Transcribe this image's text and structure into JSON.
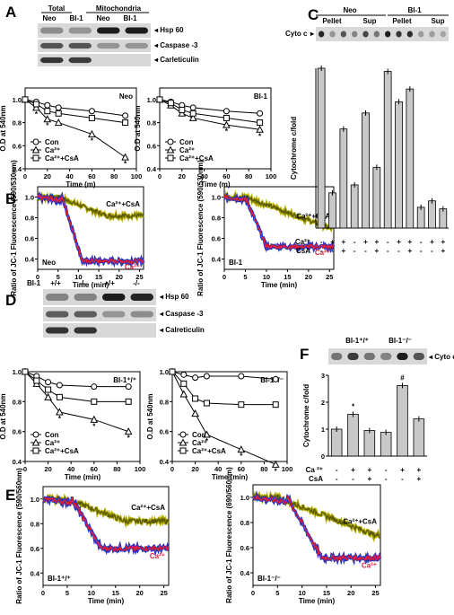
{
  "panelA": {
    "letter": "A",
    "blot": {
      "header_total": "Total",
      "header_mito": "Mitochondria",
      "lanes": [
        "Neo",
        "BI-1",
        "Neo",
        "BI-1"
      ],
      "bands": [
        "Hsp 60",
        "Caspase -3",
        "Carleticulin"
      ]
    },
    "plots": [
      {
        "title": "Neo",
        "ylabel": "O.D at 540nm",
        "xlabel": "Time (m)",
        "xticks": [
          "0",
          "20",
          "40",
          "60",
          "80",
          "100"
        ],
        "yticks": [
          "0.4",
          "0.6",
          "0.8",
          "1.0"
        ],
        "legend": [
          "Con",
          "Ca²⁺",
          "Ca²⁺+CsA"
        ]
      },
      {
        "title": "BI-1",
        "ylabel": "O.D at 540nm",
        "xlabel": "Time (m)",
        "xticks": [
          "0",
          "20",
          "40",
          "60",
          "80",
          "100"
        ],
        "yticks": [
          "0.4",
          "0.6",
          "0.8",
          "1.0"
        ],
        "legend": [
          "Con",
          "Ca²⁺",
          "Ca²⁺+CsA"
        ]
      }
    ]
  },
  "panelB": {
    "letter": "B",
    "plots": [
      {
        "tag": "Neo",
        "ylabel": "Ratio of JC-1 Fluorescence (590/530nm)",
        "xlabel": "Time (min)",
        "xticks": [
          "0",
          "5",
          "10",
          "15",
          "20",
          "25"
        ],
        "lab1": "Ca²⁺+CsA",
        "lab2": "Ca²⁺"
      },
      {
        "tag": "BI-1",
        "ylabel": "Ratio of JC-1 Fluorescence (590/530nm)",
        "xlabel": "Time (min)",
        "xticks": [
          "0",
          "5",
          "10",
          "15",
          "20",
          "25"
        ],
        "lab1": "Ca²⁺+CsA",
        "lab2": "Ca²⁺"
      }
    ]
  },
  "panelC": {
    "letter": "C",
    "group1": "Neo",
    "group2": "BI-1",
    "sub": [
      "Pellet",
      "Sup",
      "Pellet",
      "Sup"
    ],
    "band": "Cyto c",
    "ylabel": "Cytochrome c/fold",
    "row_ca": "Ca²⁺",
    "row_csa": "CsA",
    "ca_signs": [
      "-",
      "+",
      "+",
      "-",
      "+",
      "+",
      "-",
      "+",
      "+",
      "-",
      "+",
      "+"
    ],
    "csa_signs": [
      "-",
      "-",
      "+",
      "-",
      "-",
      "+",
      "-",
      "-",
      "+",
      "-",
      "-",
      "+"
    ]
  },
  "panelD": {
    "letter": "D",
    "blot": {
      "row_label": "BI-1",
      "header_total": "Total",
      "header_mito": "Mitochondria",
      "lanes": [
        "+/+",
        "-/-",
        "+/+",
        "-/-"
      ],
      "bands": [
        "Hsp 60",
        "Caspase -3",
        "Calreticulin"
      ]
    },
    "plots": [
      {
        "title": "BI-1⁺/⁺",
        "ylabel": "O.D at 540nm",
        "xlabel": "Time (min)",
        "xticks": [
          "0",
          "20",
          "40",
          "60",
          "80",
          "100"
        ],
        "yticks": [
          "0.4",
          "0.6",
          "0.8",
          "1.0"
        ],
        "legend": [
          "Con",
          "Ca²⁺",
          "Ca²⁺+CsA"
        ]
      },
      {
        "title": "BI-1⁻/⁻",
        "ylabel": "O.D at 540nm",
        "xlabel": "Time (min)",
        "xticks": [
          "0",
          "20",
          "40",
          "60",
          "80",
          "100"
        ],
        "yticks": [
          "0.4",
          "0.6",
          "0.8",
          "1.0"
        ],
        "legend": [
          "Con",
          "Ca²⁺",
          "Ca²⁺+CsA"
        ]
      }
    ]
  },
  "panelE": {
    "letter": "E",
    "plots": [
      {
        "tag": "BI-1⁺/⁺",
        "ylabel": "Ratio of JC-1 Fluorescence (590/560nm)",
        "xlabel": "Time (min)",
        "xticks": [
          "0",
          "5",
          "10",
          "15",
          "20",
          "25"
        ],
        "lab1": "Ca²⁺+CsA",
        "lab2": "Ca²⁺"
      },
      {
        "tag": "BI-1⁻/⁻",
        "ylabel": "Ratio of JC-1 Fluorescence (690/560nm)",
        "xlabel": "Time (min)",
        "xticks": [
          "0",
          "5",
          "10",
          "15",
          "20",
          "25"
        ],
        "lab1": "Ca²⁺+CsA",
        "lab2": "Ca²⁺"
      }
    ]
  },
  "panelF": {
    "letter": "F",
    "group1": "BI-1⁺/⁺",
    "group2": "BI-1⁻/⁻",
    "band": "Cyto c",
    "ylabel": "Cytochrome c/fold",
    "row_ca": "Ca ²⁺",
    "row_csa": "CsA",
    "ca_signs": [
      "-",
      "+",
      "+",
      "-",
      "+",
      "+"
    ],
    "csa_signs": [
      "-",
      "-",
      "+",
      "-",
      "-",
      "+"
    ],
    "yticks": [
      "0",
      "1",
      "2",
      "3"
    ]
  },
  "chart_data": [
    {
      "type": "line",
      "id": "A-Neo",
      "x": [
        0,
        10,
        20,
        30,
        60,
        90
      ],
      "series": [
        {
          "name": "Con",
          "values": [
            1.0,
            0.98,
            0.95,
            0.93,
            0.9,
            0.86
          ]
        },
        {
          "name": "Ca²⁺",
          "values": [
            1.0,
            0.93,
            0.83,
            0.8,
            0.7,
            0.5
          ]
        },
        {
          "name": "Ca²⁺+CsA",
          "values": [
            1.0,
            0.96,
            0.9,
            0.88,
            0.84,
            0.8
          ]
        }
      ],
      "ylim": [
        0.4,
        1.1
      ],
      "xlim": [
        0,
        100
      ]
    },
    {
      "type": "line",
      "id": "A-BI1",
      "x": [
        0,
        10,
        20,
        30,
        60,
        90
      ],
      "series": [
        {
          "name": "Con",
          "values": [
            1.0,
            0.98,
            0.95,
            0.93,
            0.9,
            0.88
          ]
        },
        {
          "name": "Ca²⁺",
          "values": [
            1.0,
            0.95,
            0.88,
            0.84,
            0.78,
            0.74
          ]
        },
        {
          "name": "Ca²⁺+CsA",
          "values": [
            1.0,
            0.97,
            0.91,
            0.88,
            0.84,
            0.8
          ]
        }
      ],
      "ylim": [
        0.4,
        1.1
      ],
      "xlim": [
        0,
        100
      ]
    },
    {
      "type": "bar",
      "id": "C",
      "categories": [
        "1",
        "2",
        "3",
        "4",
        "5",
        "6",
        "7",
        "8",
        "9",
        "10",
        "11",
        "12"
      ],
      "values": [
        1.0,
        0.22,
        0.62,
        0.27,
        0.72,
        0.38,
        0.98,
        0.79,
        0.87,
        0.13,
        0.17,
        0.12
      ],
      "ylim": [
        0,
        1
      ]
    },
    {
      "type": "line",
      "id": "D-WT",
      "x": [
        0,
        10,
        20,
        30,
        60,
        90
      ],
      "series": [
        {
          "name": "Con",
          "values": [
            1.0,
            0.97,
            0.93,
            0.91,
            0.9,
            0.9
          ]
        },
        {
          "name": "Ca²⁺",
          "values": [
            1.0,
            0.92,
            0.83,
            0.73,
            0.68,
            0.6
          ]
        },
        {
          "name": "Ca²⁺+CsA",
          "values": [
            1.0,
            0.94,
            0.88,
            0.83,
            0.8,
            0.8
          ]
        }
      ],
      "ylim": [
        0.4,
        1.0
      ],
      "xlim": [
        0,
        100
      ]
    },
    {
      "type": "line",
      "id": "D-KO",
      "x": [
        0,
        10,
        20,
        30,
        60,
        90
      ],
      "series": [
        {
          "name": "Con",
          "values": [
            1.0,
            0.98,
            0.96,
            0.97,
            0.97,
            0.95
          ]
        },
        {
          "name": "Ca²⁺",
          "values": [
            1.0,
            0.85,
            0.72,
            0.58,
            0.48,
            0.38
          ]
        },
        {
          "name": "Ca²⁺+CsA",
          "values": [
            1.0,
            0.92,
            0.82,
            0.79,
            0.78,
            0.78
          ]
        }
      ],
      "ylim": [
        0.4,
        1.0
      ],
      "xlim": [
        0,
        100
      ]
    },
    {
      "type": "bar",
      "id": "F",
      "categories": [
        "1",
        "2",
        "3",
        "4",
        "5",
        "6"
      ],
      "values": [
        1.0,
        1.55,
        0.95,
        0.88,
        2.62,
        1.38
      ],
      "ylim": [
        0,
        3
      ]
    }
  ]
}
